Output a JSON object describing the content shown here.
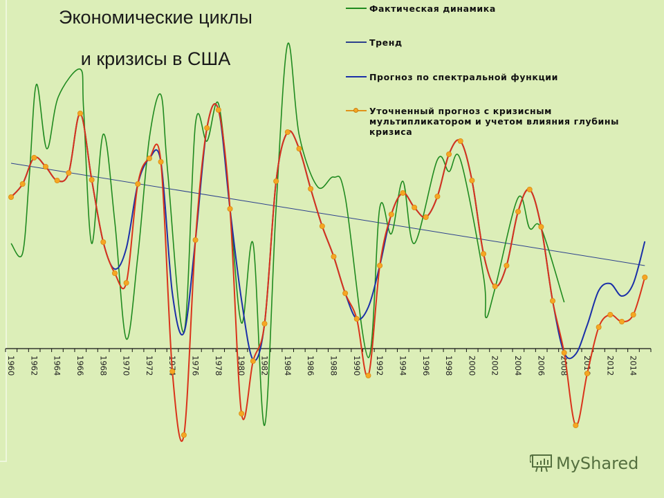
{
  "title": {
    "line1": "Экономические циклы",
    "line2": "и кризисы в США"
  },
  "legend": {
    "items": [
      {
        "label": "Фактическая динамика",
        "color": "#1f8a1f",
        "marker": "none"
      },
      {
        "label": "Тренд",
        "color": "#2b3f8c",
        "marker": "none"
      },
      {
        "label": "Прогноз по спектральной функции",
        "color": "#1a2fa8",
        "marker": "none"
      },
      {
        "label": "Уточненный прогноз с кризисным\nмультипликатором и учетом влияния глубины\nкризиса",
        "color": "#d9331a",
        "marker": "circle",
        "marker_color": "#f5a623"
      }
    ]
  },
  "watermark": {
    "text": "MyShared"
  },
  "chart_data": {
    "type": "line",
    "title": "Экономические циклы и кризисы в США",
    "xlabel": "",
    "ylabel": "",
    "x_range": [
      1960,
      2015
    ],
    "x_tick_labels": [
      "1960",
      "1962",
      "1964",
      "1966",
      "1968",
      "1970",
      "1972",
      "1974",
      "1976",
      "1978",
      "1980",
      "1982",
      "1984",
      "1986",
      "1988",
      "1990",
      "1992",
      "1994",
      "1996",
      "1998",
      "2000",
      "2002",
      "2004",
      "2006",
      "2008",
      "2010",
      "2012",
      "2014"
    ],
    "y_units": "relative index (0 = horizontal axis, no y tick labels shown)",
    "ylim": [
      -13.5,
      45
    ],
    "grid": false,
    "legend_position": "top-right",
    "series": [
      {
        "name": "Фактическая динамика",
        "color": "#1f8a1f",
        "points": [
          [
            1960,
            15.2
          ],
          [
            1961,
            13.8
          ],
          [
            1961.6,
            25.4
          ],
          [
            1962.2,
            38.2
          ],
          [
            1963.1,
            28.9
          ],
          [
            1964.1,
            36.4
          ],
          [
            1966,
            40.4
          ],
          [
            1966.3,
            34.4
          ],
          [
            1967,
            15.2
          ],
          [
            1968,
            31.0
          ],
          [
            1969,
            18.4
          ],
          [
            1970,
            1.4
          ],
          [
            1971,
            13.4
          ],
          [
            1972,
            30.4
          ],
          [
            1973,
            36.7
          ],
          [
            1973.6,
            25.4
          ],
          [
            1975,
            2.4
          ],
          [
            1976,
            32.5
          ],
          [
            1977,
            30.0
          ],
          [
            1978,
            35.4
          ],
          [
            1979,
            20.4
          ],
          [
            1980,
            3.7
          ],
          [
            1981,
            15.2
          ],
          [
            1982,
            -11.1
          ],
          [
            1983,
            20.4
          ],
          [
            1984,
            44.0
          ],
          [
            1985,
            30.9
          ],
          [
            1986.6,
            23.4
          ],
          [
            1988,
            24.8
          ],
          [
            1989,
            21.9
          ],
          [
            1991,
            -1.3
          ],
          [
            1992,
            20.4
          ],
          [
            1993,
            16.6
          ],
          [
            1994,
            24.2
          ],
          [
            1995,
            15.2
          ],
          [
            1997,
            27.3
          ],
          [
            1998,
            25.6
          ],
          [
            1999,
            27.3
          ],
          [
            2001,
            10.4
          ],
          [
            2001.2,
            4.5
          ],
          [
            2002,
            8.7
          ],
          [
            2004,
            21.8
          ],
          [
            2005,
            17.4
          ],
          [
            2006,
            17.4
          ],
          [
            2008,
            6.7
          ]
        ]
      },
      {
        "name": "Тренд",
        "color": "#2b3f8c",
        "points": [
          [
            1960,
            26.8
          ],
          [
            2015,
            12.0
          ]
        ]
      },
      {
        "name": "Прогноз по спектральной функции",
        "color": "#1a2fa8",
        "points": [
          [
            1960,
            21.9
          ],
          [
            1961,
            23.8
          ],
          [
            1962,
            27.6
          ],
          [
            1963,
            26.3
          ],
          [
            1964,
            24.3
          ],
          [
            1965,
            25.4
          ],
          [
            1966,
            34.0
          ],
          [
            1967,
            24.4
          ],
          [
            1968,
            15.4
          ],
          [
            1969,
            11.5
          ],
          [
            1970,
            14.5
          ],
          [
            1971,
            23.8
          ],
          [
            1972,
            27.5
          ],
          [
            1973,
            27.0
          ],
          [
            1974,
            8.0
          ],
          [
            1975,
            2.3
          ],
          [
            1976,
            15.7
          ],
          [
            1977,
            31.9
          ],
          [
            1978,
            34.5
          ],
          [
            1979,
            20.2
          ],
          [
            1980,
            7.0
          ],
          [
            1981,
            -1.6
          ],
          [
            1982,
            3.6
          ],
          [
            1983,
            24.2
          ],
          [
            1984,
            31.3
          ],
          [
            1985,
            28.9
          ],
          [
            1986,
            23.1
          ],
          [
            1987,
            17.7
          ],
          [
            1988,
            13.3
          ],
          [
            1989,
            8.0
          ],
          [
            1990,
            4.3
          ],
          [
            1991,
            6.0
          ],
          [
            1992,
            12.0
          ],
          [
            1993,
            19.4
          ],
          [
            1994,
            22.5
          ],
          [
            1995,
            20.4
          ],
          [
            1996,
            19.0
          ],
          [
            1997,
            22.0
          ],
          [
            1998,
            28.1
          ],
          [
            1999,
            30.0
          ],
          [
            2000,
            24.3
          ],
          [
            2001,
            13.7
          ],
          [
            2002,
            9.0
          ],
          [
            2003,
            12.0
          ],
          [
            2004,
            19.8
          ],
          [
            2005,
            23.0
          ],
          [
            2006,
            17.6
          ],
          [
            2007,
            6.9
          ],
          [
            2008,
            -0.6
          ],
          [
            2009,
            -0.8
          ],
          [
            2010,
            3.4
          ],
          [
            2011,
            8.4
          ],
          [
            2012,
            9.4
          ],
          [
            2013,
            7.6
          ],
          [
            2014,
            9.4
          ],
          [
            2015,
            15.5
          ]
        ]
      },
      {
        "name": "Уточненный прогноз с кризисным мультипликатором и учетом влияния глубины кризиса",
        "color": "#d9331a",
        "marker": "circle",
        "x": [
          1960,
          1961,
          1962,
          1963,
          1964,
          1965,
          1966,
          1967,
          1968,
          1969,
          1970,
          1971,
          1972,
          1973,
          1974,
          1975,
          1976,
          1977,
          1978,
          1979,
          1980,
          1981,
          1982,
          1983,
          1984,
          1985,
          1986,
          1987,
          1988,
          1989,
          1990,
          1991,
          1992,
          1993,
          1994,
          1995,
          1996,
          1997,
          1998,
          1999,
          2000,
          2001,
          2002,
          2003,
          2004,
          2005,
          2006,
          2007,
          2008,
          2009,
          2010,
          2011,
          2012,
          2013,
          2014,
          2015
        ],
        "values": [
          21.9,
          23.8,
          27.6,
          26.3,
          24.3,
          25.4,
          34.0,
          24.4,
          15.4,
          10.9,
          9.5,
          23.8,
          27.5,
          27.0,
          -3.3,
          -12.5,
          15.7,
          31.9,
          34.5,
          20.2,
          -9.4,
          -1.8,
          3.6,
          24.2,
          31.3,
          28.9,
          23.1,
          17.7,
          13.3,
          8.0,
          4.3,
          -3.9,
          12.0,
          19.4,
          22.5,
          20.4,
          19.0,
          22.0,
          28.1,
          30.0,
          24.3,
          13.7,
          9.0,
          12.0,
          19.8,
          23.0,
          17.6,
          6.9,
          -0.6,
          -11.1,
          -3.6,
          3.1,
          4.9,
          3.9,
          4.9,
          10.3
        ]
      }
    ]
  }
}
